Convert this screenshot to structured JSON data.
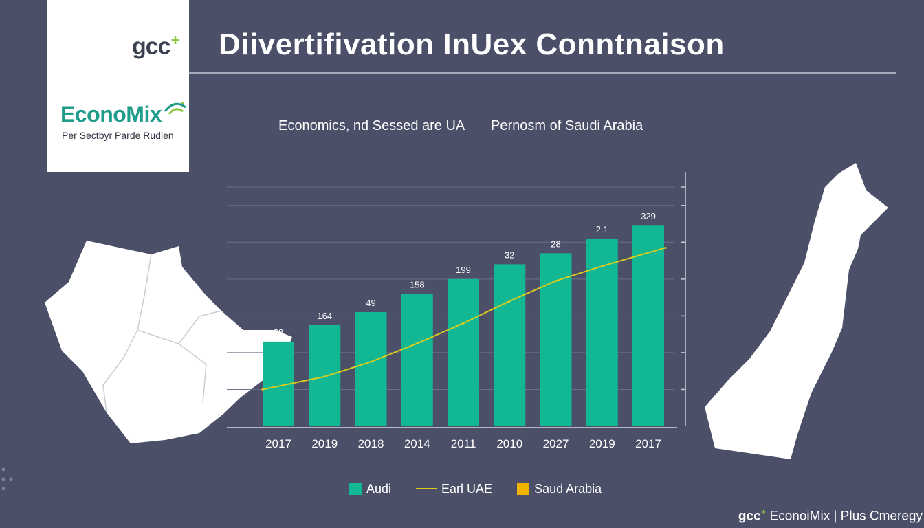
{
  "brand": {
    "gcc_text": "gcc",
    "gcc_plus": "+",
    "econo_text": "EconoMix",
    "econo_sub": "Per Sectbyr Parde Rudien"
  },
  "header": {
    "title": "Diivertifivation InUex Conntnaison",
    "subtitle_left": "Economics, nd Sessed are UA",
    "subtitle_right": "Pernosm of Saudi Arabia"
  },
  "colors": {
    "bar": "#12b894",
    "line": "#d9cc1e",
    "legend_saudi": "#f0b400",
    "background": "#4b5068"
  },
  "chart_data": {
    "type": "bar",
    "categories": [
      "2017",
      "2019",
      "2018",
      "2014",
      "2011",
      "2010",
      "2027",
      "2019",
      "2017"
    ],
    "series": [
      {
        "name": "Audi",
        "type": "bar",
        "values": [
          23,
          27.5,
          31,
          36,
          40,
          44,
          47,
          51,
          54.5
        ],
        "labels": [
          "28",
          "164",
          "49",
          "158",
          "199",
          "32",
          "28",
          "2.1",
          "329"
        ]
      },
      {
        "name": "Earl UAE",
        "type": "line",
        "values": [
          10,
          13.5,
          17.5,
          22.5,
          28,
          34,
          39.5,
          43.5,
          48.5
        ]
      }
    ],
    "ylim": [
      0,
      65
    ],
    "grid": true,
    "legend": [
      {
        "name": "Audi",
        "kind": "square"
      },
      {
        "name": "Earl UAE",
        "kind": "line"
      },
      {
        "name": "Saud Arabia",
        "kind": "square"
      }
    ],
    "legend_position": "bottom"
  },
  "footer": {
    "gcc": "gcc",
    "plus": "+",
    "text": "EconoiMix | Plus Cmeregy"
  }
}
